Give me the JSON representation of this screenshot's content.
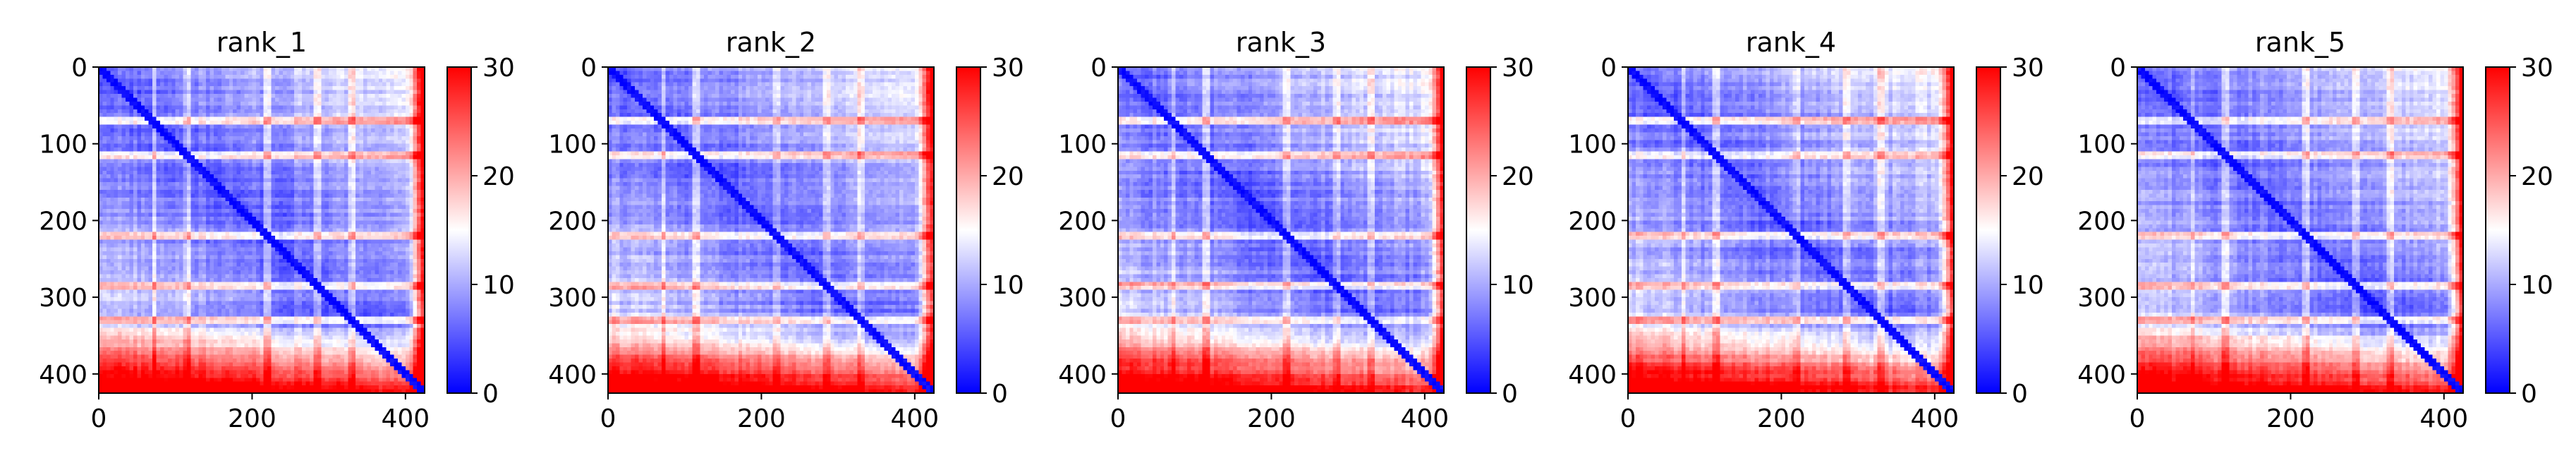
{
  "figure": {
    "colorbar": {
      "ticks": [
        0,
        10,
        20,
        30
      ],
      "vmin": 0,
      "vmax": 30,
      "colormap": "bwr"
    }
  },
  "chart_data": [
    {
      "type": "heatmap",
      "title": "rank_1",
      "xlim": [
        0,
        425
      ],
      "ylim": [
        425,
        0
      ],
      "xticks": [
        0,
        200,
        400
      ],
      "yticks": [
        0,
        100,
        200,
        300,
        400
      ],
      "zlim": [
        0,
        30
      ],
      "description_of_pattern": [
        "low (blue) values across most of the matrix",
        "diagonal near 0",
        "high (red) values in the last rows around y 330-425 and the last columns x 410-425",
        "horizontal light bands near y 75, 115, 220, 285, 330"
      ]
    },
    {
      "type": "heatmap",
      "title": "rank_2",
      "xlim": [
        0,
        425
      ],
      "ylim": [
        425,
        0
      ],
      "xticks": [
        0,
        200,
        400
      ],
      "yticks": [
        0,
        100,
        200,
        300,
        400
      ],
      "zlim": [
        0,
        30
      ],
      "description_of_pattern": [
        "low (blue) values across most of the matrix",
        "diagonal near 0",
        "high (red) values in the last rows and last columns"
      ]
    },
    {
      "type": "heatmap",
      "title": "rank_3",
      "xlim": [
        0,
        425
      ],
      "ylim": [
        425,
        0
      ],
      "xticks": [
        0,
        200,
        400
      ],
      "yticks": [
        0,
        100,
        200,
        300,
        400
      ],
      "zlim": [
        0,
        30
      ],
      "description_of_pattern": [
        "low (blue) values across most of the matrix",
        "diagonal near 0",
        "high (red) values in the last rows and last columns"
      ]
    },
    {
      "type": "heatmap",
      "title": "rank_4",
      "xlim": [
        0,
        425
      ],
      "ylim": [
        425,
        0
      ],
      "xticks": [
        0,
        200,
        400
      ],
      "yticks": [
        0,
        100,
        200,
        300,
        400
      ],
      "zlim": [
        0,
        30
      ],
      "description_of_pattern": [
        "low (blue) values across most of the matrix",
        "diagonal near 0",
        "high (red) values in the last rows and last columns"
      ]
    },
    {
      "type": "heatmap",
      "title": "rank_5",
      "xlim": [
        0,
        425
      ],
      "ylim": [
        425,
        0
      ],
      "xticks": [
        0,
        200,
        400
      ],
      "yticks": [
        0,
        100,
        200,
        300,
        400
      ],
      "zlim": [
        0,
        30
      ],
      "description_of_pattern": [
        "low (blue) values across most of the matrix",
        "diagonal near 0",
        "high (red) values in the last rows and last columns"
      ]
    }
  ]
}
